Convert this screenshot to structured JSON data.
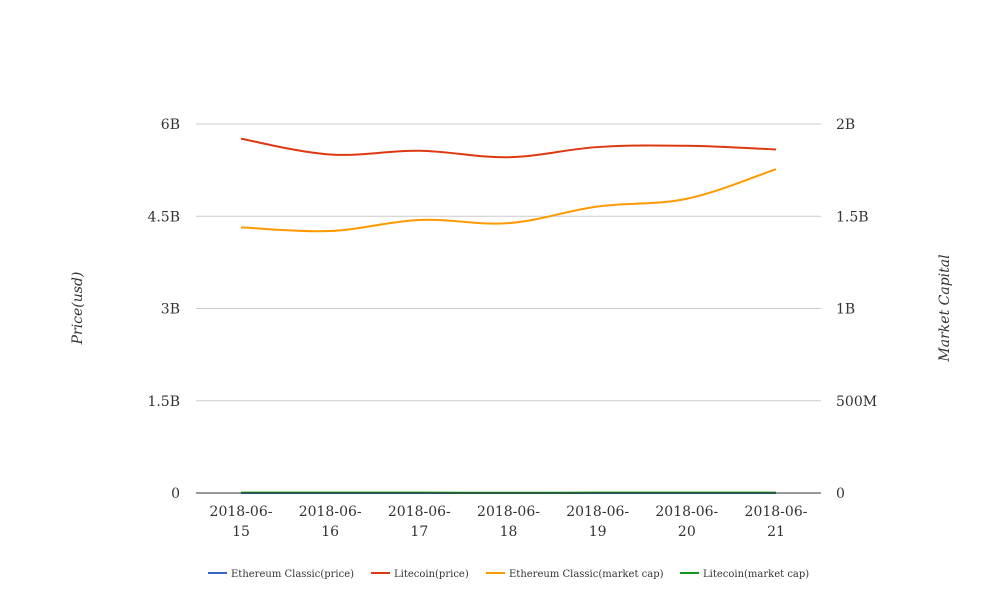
{
  "chart_data": {
    "type": "line",
    "x": [
      "2018-06-15",
      "2018-06-16",
      "2018-06-17",
      "2018-06-18",
      "2018-06-19",
      "2018-06-20",
      "2018-06-21"
    ],
    "x_tick_lines": [
      [
        "2018-06-",
        "15"
      ],
      [
        "2018-06-",
        "16"
      ],
      [
        "2018-06-",
        "17"
      ],
      [
        "2018-06-",
        "18"
      ],
      [
        "2018-06-",
        "19"
      ],
      [
        "2018-06-",
        "20"
      ],
      [
        "2018-06-",
        "21"
      ]
    ],
    "ylabel_left": "Price(usd)",
    "ylabel_right": "Market Capital",
    "y_left_ticks": [
      "0",
      "1.5B",
      "3B",
      "4.5B",
      "6B"
    ],
    "y_right_ticks": [
      "0",
      "500M",
      "1B",
      "1.5B",
      "2B"
    ],
    "ylim_left": [
      0,
      6000000000
    ],
    "ylim_right": [
      0,
      2000000000
    ],
    "grid": true,
    "legend_position": "bottom",
    "series": [
      {
        "name": "Ethereum Classic(price)",
        "axis": "left",
        "color": "#3366cc",
        "values": [
          11.5,
          11.2,
          11.4,
          11.0,
          11.3,
          11.4,
          11.6
        ]
      },
      {
        "name": "Litecoin(price)",
        "axis": "right",
        "color": "#dc3912",
        "values": [
          1920000000,
          1835000000,
          1855000000,
          1820000000,
          1875000000,
          1882000000,
          1862000000
        ]
      },
      {
        "name": "Ethereum Classic(market cap)",
        "axis": "right",
        "color": "#ff9900",
        "values": [
          1440000000,
          1420000000,
          1480000000,
          1463000000,
          1553000000,
          1595000000,
          1755000000
        ]
      },
      {
        "name": "Litecoin(market cap)",
        "axis": "left",
        "color": "#109618",
        "values": [
          5200000,
          5100000,
          5150000,
          5000000,
          5100000,
          5150000,
          5180000
        ]
      }
    ]
  }
}
